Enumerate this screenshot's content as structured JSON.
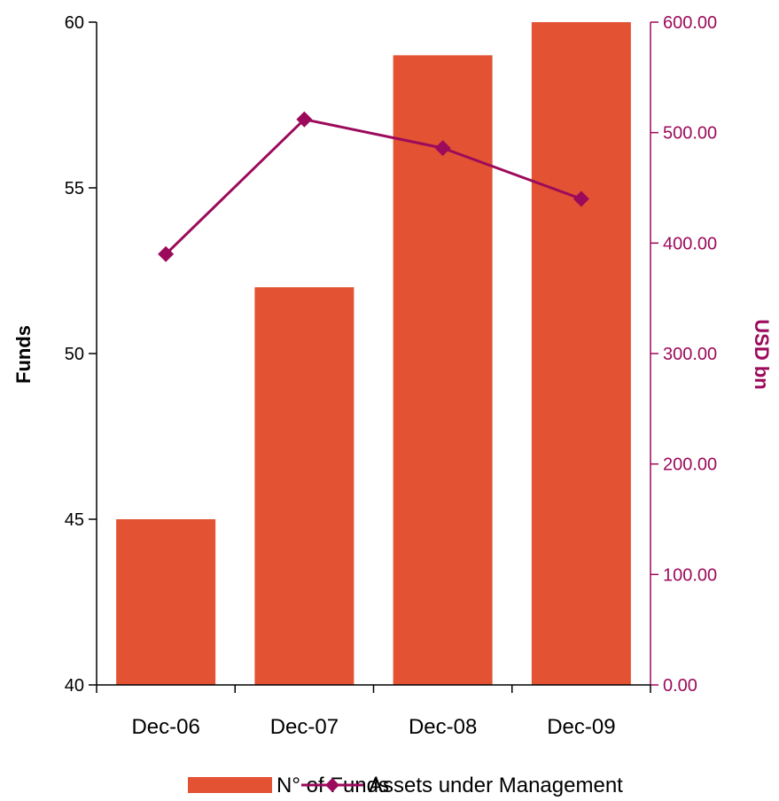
{
  "chart_data": {
    "type": "bar",
    "categories": [
      "Dec-06",
      "Dec-07",
      "Dec-08",
      "Dec-09"
    ],
    "series": [
      {
        "name": "N° of Funds",
        "type": "bar",
        "axis": "left",
        "values": [
          45,
          52,
          59,
          60
        ]
      },
      {
        "name": "Assets under Management",
        "type": "line",
        "axis": "right",
        "values": [
          390,
          512,
          486,
          440
        ]
      }
    ],
    "y_left": {
      "label": "Funds",
      "ylim": [
        40,
        60
      ],
      "ticks": [
        "40",
        "45",
        "50",
        "55",
        "60"
      ]
    },
    "y_right": {
      "label": "USD bn",
      "ylim": [
        0,
        600
      ],
      "ticks": [
        "0.00",
        "100.00",
        "200.00",
        "300.00",
        "400.00",
        "500.00",
        "600.00"
      ]
    },
    "grid": false,
    "legend": "bottom"
  },
  "colors": {
    "bar": "#e35233",
    "line": "#9c0a5b",
    "right_axis": "#9c0a5b",
    "left_axis": "#000000"
  }
}
